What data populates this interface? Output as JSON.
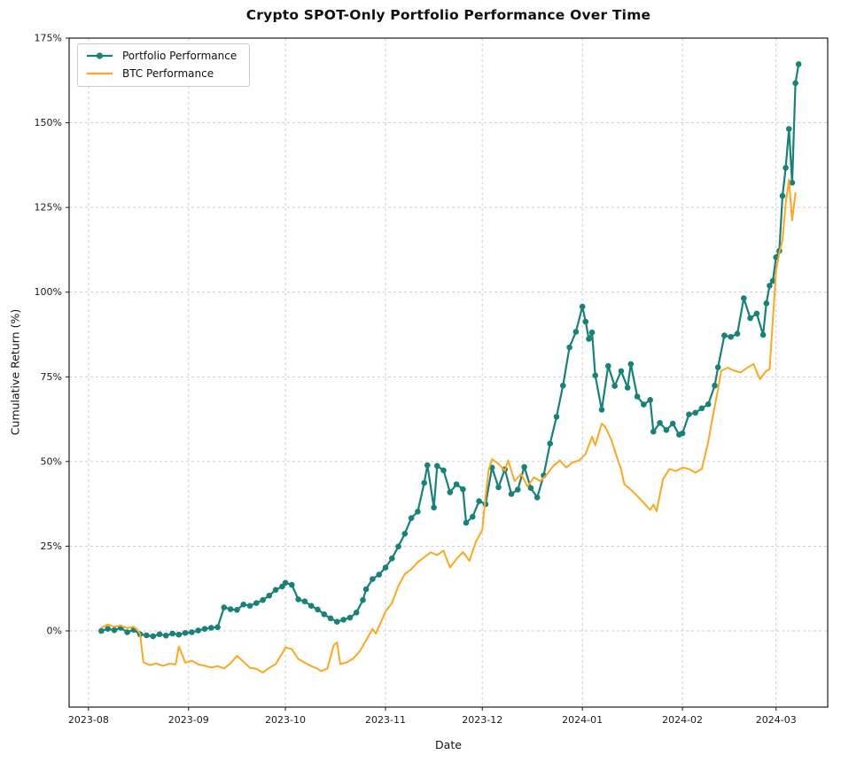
{
  "figure": {
    "title": "Crypto SPOT-Only Portfolio Performance Over Time",
    "xlabel": "Date",
    "ylabel": "Cumulative Return (%)"
  },
  "legend": {
    "position": "upper left",
    "items": [
      {
        "label": "Portfolio Performance",
        "color": "#168278",
        "marker": "circle"
      },
      {
        "label": "BTC Performance",
        "color": "#ffa71e",
        "marker": "none"
      }
    ]
  },
  "chart_data": {
    "type": "line",
    "title": "Crypto SPOT-Only Portfolio Performance Over Time",
    "xlabel": "Date",
    "ylabel": "Cumulative Return (%)",
    "grid": true,
    "legend_position": "upper left",
    "xlim": [
      "2023-07-26",
      "2024-03-17"
    ],
    "ylim": [
      -22.5,
      175
    ],
    "x_ticks": [
      {
        "label": "2023-08",
        "date": "2023-08-01"
      },
      {
        "label": "2023-09",
        "date": "2023-09-01"
      },
      {
        "label": "2023-10",
        "date": "2023-10-01"
      },
      {
        "label": "2023-11",
        "date": "2023-11-01"
      },
      {
        "label": "2023-12",
        "date": "2023-12-01"
      },
      {
        "label": "2024-01",
        "date": "2024-01-01"
      },
      {
        "label": "2024-02",
        "date": "2024-02-01"
      },
      {
        "label": "2024-03",
        "date": "2024-03-01"
      }
    ],
    "y_ticks": [
      {
        "label": "0%",
        "value": 0
      },
      {
        "label": "25%",
        "value": 25
      },
      {
        "label": "50%",
        "value": 50
      },
      {
        "label": "75%",
        "value": 75
      },
      {
        "label": "100%",
        "value": 100
      },
      {
        "label": "125%",
        "value": 125
      },
      {
        "label": "150%",
        "value": 150
      },
      {
        "label": "175%",
        "value": 175
      }
    ],
    "series": [
      {
        "name": "Portfolio Performance",
        "color": "#168278",
        "line_width": 2.2,
        "marker": "circle",
        "marker_size": 3.3,
        "points": [
          [
            "2023-08-05",
            0.0
          ],
          [
            "2023-08-07",
            0.6
          ],
          [
            "2023-08-09",
            0.2
          ],
          [
            "2023-08-11",
            0.9
          ],
          [
            "2023-08-13",
            -0.4
          ],
          [
            "2023-08-15",
            0.3
          ],
          [
            "2023-08-17",
            -1.0
          ],
          [
            "2023-08-19",
            -1.3
          ],
          [
            "2023-08-21",
            -1.6
          ],
          [
            "2023-08-23",
            -1.0
          ],
          [
            "2023-08-25",
            -1.4
          ],
          [
            "2023-08-27",
            -0.8
          ],
          [
            "2023-08-29",
            -1.1
          ],
          [
            "2023-08-31",
            -0.6
          ],
          [
            "2023-09-02",
            -0.4
          ],
          [
            "2023-09-04",
            0.1
          ],
          [
            "2023-09-06",
            0.6
          ],
          [
            "2023-09-08",
            0.9
          ],
          [
            "2023-09-10",
            1.1
          ],
          [
            "2023-09-12",
            6.9
          ],
          [
            "2023-09-14",
            6.4
          ],
          [
            "2023-09-16",
            6.2
          ],
          [
            "2023-09-18",
            7.8
          ],
          [
            "2023-09-20",
            7.4
          ],
          [
            "2023-09-22",
            8.2
          ],
          [
            "2023-09-24",
            9.1
          ],
          [
            "2023-09-26",
            10.4
          ],
          [
            "2023-09-28",
            12.1
          ],
          [
            "2023-09-30",
            13.1
          ],
          [
            "2023-10-01",
            14.2
          ],
          [
            "2023-10-03",
            13.6
          ],
          [
            "2023-10-05",
            9.3
          ],
          [
            "2023-10-07",
            8.7
          ],
          [
            "2023-10-09",
            7.4
          ],
          [
            "2023-10-11",
            6.3
          ],
          [
            "2023-10-13",
            4.9
          ],
          [
            "2023-10-15",
            3.7
          ],
          [
            "2023-10-17",
            2.7
          ],
          [
            "2023-10-19",
            3.3
          ],
          [
            "2023-10-21",
            3.9
          ],
          [
            "2023-10-23",
            5.4
          ],
          [
            "2023-10-25",
            9.1
          ],
          [
            "2023-10-26",
            12.3
          ],
          [
            "2023-10-28",
            15.3
          ],
          [
            "2023-10-30",
            16.6
          ],
          [
            "2023-11-01",
            18.7
          ],
          [
            "2023-11-03",
            21.4
          ],
          [
            "2023-11-05",
            24.9
          ],
          [
            "2023-11-07",
            28.7
          ],
          [
            "2023-11-09",
            33.3
          ],
          [
            "2023-11-11",
            35.2
          ],
          [
            "2023-11-13",
            43.7
          ],
          [
            "2023-11-14",
            48.9
          ],
          [
            "2023-11-16",
            36.4
          ],
          [
            "2023-11-17",
            48.7
          ],
          [
            "2023-11-19",
            47.4
          ],
          [
            "2023-11-21",
            40.9
          ],
          [
            "2023-11-23",
            43.3
          ],
          [
            "2023-11-25",
            41.8
          ],
          [
            "2023-11-26",
            31.9
          ],
          [
            "2023-11-28",
            33.7
          ],
          [
            "2023-11-30",
            38.3
          ],
          [
            "2023-12-02",
            37.4
          ],
          [
            "2023-12-04",
            48.2
          ],
          [
            "2023-12-06",
            42.4
          ],
          [
            "2023-12-08",
            47.7
          ],
          [
            "2023-12-10",
            40.4
          ],
          [
            "2023-12-12",
            41.7
          ],
          [
            "2023-12-14",
            48.4
          ],
          [
            "2023-12-16",
            42.2
          ],
          [
            "2023-12-18",
            39.4
          ],
          [
            "2023-12-20",
            45.9
          ],
          [
            "2023-12-22",
            55.3
          ],
          [
            "2023-12-24",
            63.2
          ],
          [
            "2023-12-26",
            72.4
          ],
          [
            "2023-12-28",
            83.7
          ],
          [
            "2023-12-30",
            88.3
          ],
          [
            "2024-01-01",
            95.7
          ],
          [
            "2024-01-02",
            91.3
          ],
          [
            "2024-01-03",
            86.2
          ],
          [
            "2024-01-04",
            88.1
          ],
          [
            "2024-01-05",
            75.4
          ],
          [
            "2024-01-07",
            65.3
          ],
          [
            "2024-01-09",
            78.2
          ],
          [
            "2024-01-11",
            72.3
          ],
          [
            "2024-01-13",
            76.7
          ],
          [
            "2024-01-15",
            71.8
          ],
          [
            "2024-01-16",
            78.8
          ],
          [
            "2024-01-18",
            69.2
          ],
          [
            "2024-01-20",
            66.8
          ],
          [
            "2024-01-22",
            68.2
          ],
          [
            "2024-01-23",
            58.8
          ],
          [
            "2024-01-25",
            61.4
          ],
          [
            "2024-01-27",
            59.3
          ],
          [
            "2024-01-29",
            61.2
          ],
          [
            "2024-01-31",
            57.9
          ],
          [
            "2024-02-01",
            58.3
          ],
          [
            "2024-02-03",
            63.9
          ],
          [
            "2024-02-05",
            64.4
          ],
          [
            "2024-02-07",
            65.7
          ],
          [
            "2024-02-09",
            66.9
          ],
          [
            "2024-02-11",
            72.4
          ],
          [
            "2024-02-12",
            77.8
          ],
          [
            "2024-02-14",
            87.2
          ],
          [
            "2024-02-16",
            86.8
          ],
          [
            "2024-02-18",
            87.7
          ],
          [
            "2024-02-20",
            98.2
          ],
          [
            "2024-02-22",
            92.3
          ],
          [
            "2024-02-24",
            93.7
          ],
          [
            "2024-02-26",
            87.4
          ],
          [
            "2024-02-27",
            96.7
          ],
          [
            "2024-02-28",
            101.9
          ],
          [
            "2024-02-29",
            103.3
          ],
          [
            "2024-03-01",
            110.3
          ],
          [
            "2024-03-02",
            112.2
          ],
          [
            "2024-03-03",
            128.4
          ],
          [
            "2024-03-04",
            136.7
          ],
          [
            "2024-03-05",
            148.2
          ],
          [
            "2024-03-06",
            132.3
          ],
          [
            "2024-03-07",
            161.7
          ],
          [
            "2024-03-08",
            167.3
          ]
        ]
      },
      {
        "name": "BTC Performance",
        "color": "#ffa71e",
        "line_width": 2.0,
        "marker": "none",
        "marker_size": 0,
        "points": [
          [
            "2023-08-05",
            0.9
          ],
          [
            "2023-08-07",
            1.9
          ],
          [
            "2023-08-09",
            1.2
          ],
          [
            "2023-08-11",
            1.6
          ],
          [
            "2023-08-13",
            0.8
          ],
          [
            "2023-08-15",
            1.2
          ],
          [
            "2023-08-16",
            0.4
          ],
          [
            "2023-08-17",
            -0.9
          ],
          [
            "2023-08-18",
            -9.3
          ],
          [
            "2023-08-20",
            -10.1
          ],
          [
            "2023-08-22",
            -9.6
          ],
          [
            "2023-08-24",
            -10.3
          ],
          [
            "2023-08-26",
            -9.7
          ],
          [
            "2023-08-28",
            -9.9
          ],
          [
            "2023-08-29",
            -4.6
          ],
          [
            "2023-08-31",
            -9.4
          ],
          [
            "2023-09-02",
            -8.8
          ],
          [
            "2023-09-04",
            -9.9
          ],
          [
            "2023-09-06",
            -10.3
          ],
          [
            "2023-09-08",
            -10.8
          ],
          [
            "2023-09-10",
            -10.4
          ],
          [
            "2023-09-12",
            -11.1
          ],
          [
            "2023-09-14",
            -9.6
          ],
          [
            "2023-09-16",
            -7.4
          ],
          [
            "2023-09-18",
            -9.1
          ],
          [
            "2023-09-20",
            -10.9
          ],
          [
            "2023-09-22",
            -11.2
          ],
          [
            "2023-09-24",
            -12.3
          ],
          [
            "2023-09-26",
            -10.9
          ],
          [
            "2023-09-28",
            -9.8
          ],
          [
            "2023-09-30",
            -6.6
          ],
          [
            "2023-10-01",
            -4.9
          ],
          [
            "2023-10-03",
            -5.4
          ],
          [
            "2023-10-05",
            -8.3
          ],
          [
            "2023-10-07",
            -9.4
          ],
          [
            "2023-10-09",
            -10.4
          ],
          [
            "2023-10-11",
            -11.2
          ],
          [
            "2023-10-12",
            -11.9
          ],
          [
            "2023-10-14",
            -11.1
          ],
          [
            "2023-10-16",
            -4.2
          ],
          [
            "2023-10-17",
            -3.4
          ],
          [
            "2023-10-18",
            -9.8
          ],
          [
            "2023-10-20",
            -9.3
          ],
          [
            "2023-10-22",
            -8.2
          ],
          [
            "2023-10-24",
            -6.1
          ],
          [
            "2023-10-26",
            -2.8
          ],
          [
            "2023-10-28",
            0.6
          ],
          [
            "2023-10-29",
            -0.8
          ],
          [
            "2023-10-31",
            3.4
          ],
          [
            "2023-11-01",
            5.7
          ],
          [
            "2023-11-03",
            8.2
          ],
          [
            "2023-11-05",
            13.2
          ],
          [
            "2023-11-07",
            16.8
          ],
          [
            "2023-11-09",
            18.2
          ],
          [
            "2023-11-11",
            20.3
          ],
          [
            "2023-11-13",
            21.7
          ],
          [
            "2023-11-15",
            23.2
          ],
          [
            "2023-11-17",
            22.4
          ],
          [
            "2023-11-19",
            23.7
          ],
          [
            "2023-11-21",
            18.7
          ],
          [
            "2023-11-23",
            21.2
          ],
          [
            "2023-11-25",
            23.3
          ],
          [
            "2023-11-27",
            20.7
          ],
          [
            "2023-11-29",
            26.3
          ],
          [
            "2023-12-01",
            29.8
          ],
          [
            "2023-12-02",
            39.7
          ],
          [
            "2023-12-03",
            47.6
          ],
          [
            "2023-12-04",
            50.7
          ],
          [
            "2023-12-06",
            49.3
          ],
          [
            "2023-12-08",
            47.3
          ],
          [
            "2023-12-09",
            50.3
          ],
          [
            "2023-12-11",
            44.2
          ],
          [
            "2023-12-13",
            46.3
          ],
          [
            "2023-12-15",
            42.7
          ],
          [
            "2023-12-17",
            45.3
          ],
          [
            "2023-12-19",
            44.2
          ],
          [
            "2023-12-21",
            46.2
          ],
          [
            "2023-12-23",
            48.7
          ],
          [
            "2023-12-25",
            50.3
          ],
          [
            "2023-12-27",
            48.2
          ],
          [
            "2023-12-29",
            49.8
          ],
          [
            "2023-12-31",
            50.3
          ],
          [
            "2024-01-02",
            52.2
          ],
          [
            "2024-01-04",
            57.3
          ],
          [
            "2024-01-05",
            54.8
          ],
          [
            "2024-01-07",
            61.2
          ],
          [
            "2024-01-08",
            60.3
          ],
          [
            "2024-01-10",
            56.4
          ],
          [
            "2024-01-12",
            50.4
          ],
          [
            "2024-01-13",
            47.7
          ],
          [
            "2024-01-14",
            43.3
          ],
          [
            "2024-01-16",
            41.7
          ],
          [
            "2024-01-18",
            39.8
          ],
          [
            "2024-01-20",
            37.8
          ],
          [
            "2024-01-22",
            35.7
          ],
          [
            "2024-01-23",
            37.3
          ],
          [
            "2024-01-24",
            35.3
          ],
          [
            "2024-01-26",
            44.8
          ],
          [
            "2024-01-28",
            47.8
          ],
          [
            "2024-01-30",
            47.2
          ],
          [
            "2024-02-01",
            48.2
          ],
          [
            "2024-02-03",
            47.8
          ],
          [
            "2024-02-05",
            46.7
          ],
          [
            "2024-02-07",
            47.8
          ],
          [
            "2024-02-09",
            55.8
          ],
          [
            "2024-02-10",
            61.3
          ],
          [
            "2024-02-11",
            66.2
          ],
          [
            "2024-02-12",
            71.3
          ],
          [
            "2024-02-13",
            76.8
          ],
          [
            "2024-02-15",
            77.7
          ],
          [
            "2024-02-17",
            76.8
          ],
          [
            "2024-02-19",
            76.3
          ],
          [
            "2024-02-21",
            77.6
          ],
          [
            "2024-02-23",
            78.8
          ],
          [
            "2024-02-25",
            74.3
          ],
          [
            "2024-02-27",
            76.8
          ],
          [
            "2024-02-28",
            77.2
          ],
          [
            "2024-02-29",
            91.8
          ],
          [
            "2024-03-01",
            106.2
          ],
          [
            "2024-03-02",
            111.7
          ],
          [
            "2024-03-03",
            115.3
          ],
          [
            "2024-03-04",
            126.2
          ],
          [
            "2024-03-05",
            133.2
          ],
          [
            "2024-03-06",
            121.2
          ],
          [
            "2024-03-07",
            129.3
          ]
        ]
      }
    ]
  }
}
